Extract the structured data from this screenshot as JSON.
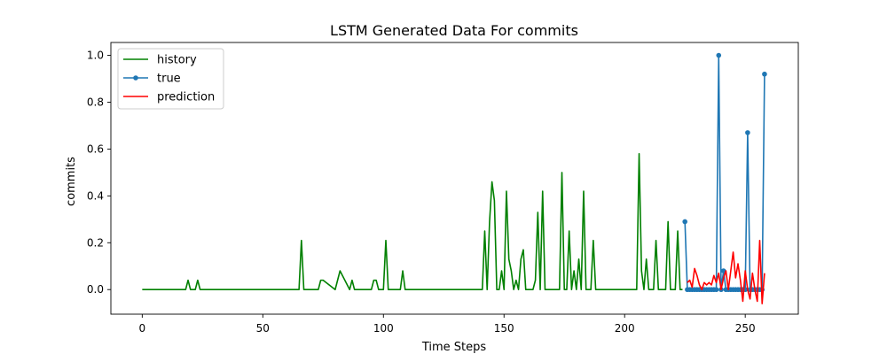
{
  "chart_data": {
    "type": "line",
    "title": "LSTM Generated Data For commits",
    "xlabel": "Time Steps",
    "ylabel": "commits",
    "xlim": [
      -13,
      272
    ],
    "ylim": [
      -0.105,
      1.055
    ],
    "xticks": [
      0,
      50,
      100,
      150,
      200,
      250
    ],
    "yticks": [
      0.0,
      0.2,
      0.4,
      0.6,
      0.8,
      1.0
    ],
    "xtick_labels": [
      "0",
      "50",
      "100",
      "150",
      "200",
      "250"
    ],
    "ytick_labels": [
      "0.0",
      "0.2",
      "0.4",
      "0.6",
      "0.8",
      "1.0"
    ],
    "grid": false,
    "legend_position": "top-left",
    "series": [
      {
        "name": "history",
        "color": "#008000",
        "marker": "none",
        "x": [
          0,
          18,
          19,
          20,
          22,
          23,
          24,
          65,
          66,
          67,
          73,
          74,
          75,
          80,
          81,
          82,
          86,
          87,
          88,
          95,
          96,
          97,
          98,
          100,
          101,
          102,
          107,
          108,
          109,
          141,
          142,
          143,
          144,
          145,
          146,
          147,
          148,
          149,
          150,
          151,
          152,
          153,
          154,
          155,
          156,
          157,
          158,
          159,
          162,
          163,
          164,
          165,
          166,
          167,
          168,
          173,
          174,
          175,
          176,
          177,
          178,
          179,
          180,
          181,
          182,
          183,
          184,
          185,
          186,
          187,
          188,
          189,
          205,
          206,
          207,
          208,
          209,
          210,
          212,
          213,
          214,
          217,
          218,
          219,
          221,
          222,
          223,
          224
        ],
        "y": [
          0,
          0,
          0.04,
          0,
          0,
          0.04,
          0,
          0,
          0.21,
          0,
          0,
          0.04,
          0.04,
          0,
          0.04,
          0.08,
          0,
          0.04,
          0,
          0,
          0.04,
          0.04,
          0,
          0,
          0.21,
          0,
          0,
          0.08,
          0,
          0,
          0.25,
          0,
          0.29,
          0.46,
          0.38,
          0,
          0,
          0.08,
          0,
          0.42,
          0.13,
          0.08,
          0,
          0.04,
          0,
          0.13,
          0.17,
          0,
          0,
          0.04,
          0.33,
          0,
          0.42,
          0,
          0,
          0,
          0.5,
          0,
          0,
          0.25,
          0,
          0.08,
          0,
          0.13,
          0,
          0.42,
          0,
          0,
          0,
          0.21,
          0,
          0,
          0,
          0.58,
          0.08,
          0,
          0.13,
          0,
          0,
          0.21,
          0,
          0,
          0.29,
          0,
          0,
          0.25,
          0,
          0
        ]
      },
      {
        "name": "true",
        "color": "#1f77b4",
        "marker": "circle",
        "x": [
          225,
          226,
          227,
          228,
          229,
          230,
          231,
          232,
          233,
          234,
          235,
          236,
          237,
          238,
          239,
          240,
          241,
          242,
          243,
          244,
          245,
          246,
          247,
          248,
          249,
          250,
          251,
          252,
          253,
          254,
          255,
          256,
          257,
          258
        ],
        "y": [
          0.29,
          0,
          0,
          0,
          0,
          0,
          0,
          0,
          0,
          0,
          0,
          0,
          0,
          0,
          1.0,
          0,
          0.08,
          0,
          0,
          0,
          0,
          0,
          0,
          0,
          0,
          0,
          0.67,
          0,
          0,
          0,
          0,
          0,
          0,
          0.92
        ]
      },
      {
        "name": "prediction",
        "color": "#ff0000",
        "marker": "none",
        "x": [
          226,
          227,
          228,
          229,
          230,
          231,
          232,
          233,
          234,
          235,
          236,
          237,
          238,
          239,
          240,
          241,
          242,
          243,
          244,
          245,
          246,
          247,
          248,
          249,
          250,
          251,
          252,
          253,
          254,
          255,
          256,
          257,
          258
        ],
        "y": [
          0.03,
          0.04,
          0.01,
          0.09,
          0.06,
          0.02,
          0.0,
          0.03,
          0.02,
          0.03,
          0.02,
          0.06,
          0.03,
          0.07,
          0.0,
          0.05,
          0.08,
          0.0,
          0.08,
          0.16,
          0.05,
          0.11,
          0.04,
          -0.05,
          0.08,
          0.0,
          -0.04,
          0.07,
          0.0,
          -0.05,
          0.21,
          -0.06,
          0.07
        ]
      }
    ]
  }
}
